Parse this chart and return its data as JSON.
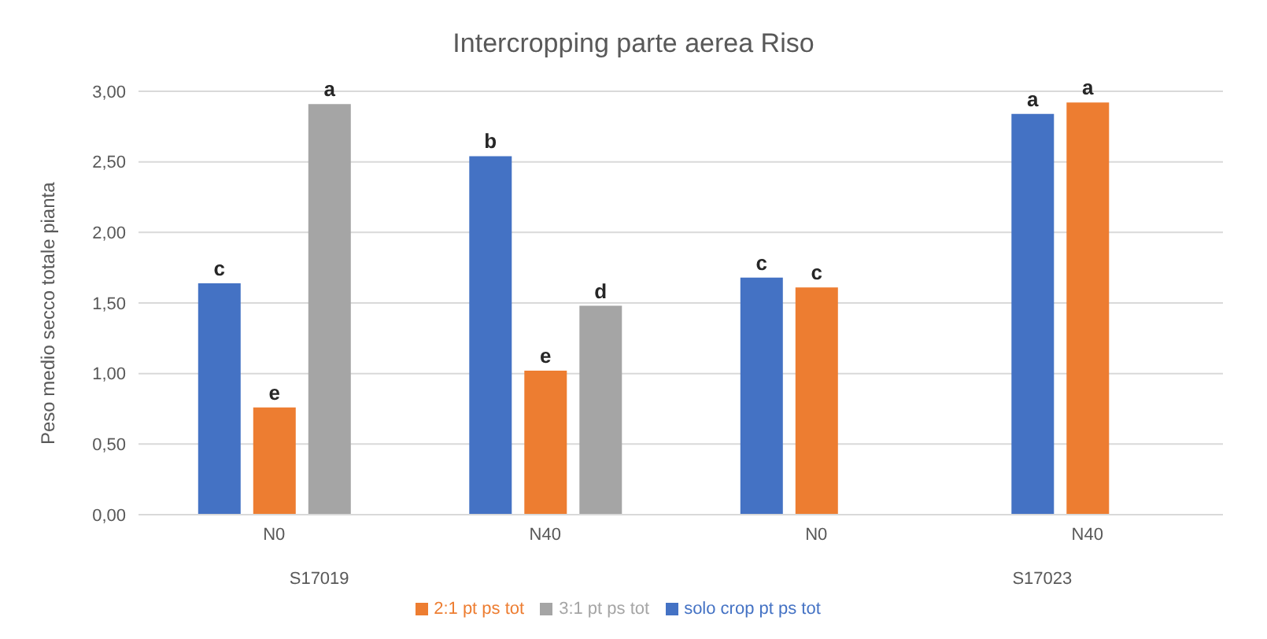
{
  "chart_data": {
    "type": "bar",
    "title": "Intercropping parte aerea Riso",
    "ylabel": "Peso medio secco totale pianta",
    "categories": [
      "N0",
      "N40",
      "N0",
      "N40"
    ],
    "annotations": [
      "S17019",
      "S17023"
    ],
    "series": [
      {
        "name": "solo crop pt ps tot",
        "color": "#4472c4",
        "values": [
          1.64,
          2.54,
          1.68,
          2.84
        ],
        "value_labels": [
          "c",
          "b",
          "c",
          "a"
        ]
      },
      {
        "name": "2:1 pt ps tot",
        "color": "#ed7d31",
        "values": [
          0.76,
          1.02,
          1.61,
          2.92
        ],
        "value_labels": [
          "e",
          "e",
          "c",
          "a"
        ]
      },
      {
        "name": "3:1 pt ps tot",
        "color": "#a5a5a5",
        "values": [
          2.91,
          1.48,
          null,
          null
        ],
        "value_labels": [
          "a",
          "d",
          null,
          null
        ]
      }
    ],
    "ylim": [
      0,
      3
    ],
    "yticks": [
      {
        "value": 0,
        "label": "0,00"
      },
      {
        "value": 0.5,
        "label": "0,50"
      },
      {
        "value": 1,
        "label": "1,00"
      },
      {
        "value": 1.5,
        "label": "1,50"
      },
      {
        "value": 2,
        "label": "2,00"
      },
      {
        "value": 2.5,
        "label": "2,50"
      },
      {
        "value": 3,
        "label": "3,00"
      }
    ],
    "grid": "y",
    "legend": "bottom"
  }
}
